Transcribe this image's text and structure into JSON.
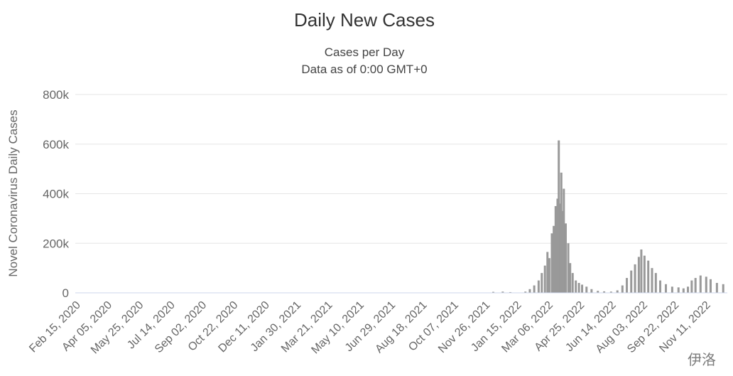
{
  "chart_data": {
    "type": "bar",
    "title": "Daily New Cases",
    "subtitle": [
      "Cases per Day",
      "Data as of 0:00 GMT+0"
    ],
    "xlabel": "",
    "ylabel": "Novel Coronavirus Daily Cases",
    "ylim": [
      0,
      800000
    ],
    "y_ticks": [
      0,
      200000,
      400000,
      600000,
      800000
    ],
    "y_tick_labels": [
      "0",
      "200k",
      "400k",
      "600k",
      "800k"
    ],
    "x_tick_labels": [
      "Feb 15, 2020",
      "Apr 05, 2020",
      "May 25, 2020",
      "Jul 14, 2020",
      "Sep 02, 2020",
      "Oct 22, 2020",
      "Dec 11, 2020",
      "Jan 30, 2021",
      "Mar 21, 2021",
      "May 10, 2021",
      "Jun 29, 2021",
      "Aug 18, 2021",
      "Oct 07, 2021",
      "Nov 26, 2021",
      "Jan 15, 2022",
      "Mar 06, 2022",
      "Apr 25, 2022",
      "Jun 14, 2022",
      "Aug 03, 2022",
      "Sep 22, 2022",
      "Nov 11, 2022"
    ],
    "x_start": "Feb 15, 2020",
    "x_end": "Dec 07, 2022",
    "grid": true,
    "series": [
      {
        "color": "#999999",
        "points": [
          [
            "2021-12-05",
            4000
          ],
          [
            "2021-12-20",
            5000
          ],
          [
            "2022-01-01",
            3000
          ],
          [
            "2022-01-25",
            5000
          ],
          [
            "2022-02-01",
            15000
          ],
          [
            "2022-02-08",
            30000
          ],
          [
            "2022-02-15",
            50000
          ],
          [
            "2022-02-20",
            80000
          ],
          [
            "2022-02-25",
            110000
          ],
          [
            "2022-03-01",
            165000
          ],
          [
            "2022-03-04",
            140000
          ],
          [
            "2022-03-08",
            240000
          ],
          [
            "2022-03-11",
            270000
          ],
          [
            "2022-03-14",
            350000
          ],
          [
            "2022-03-17",
            380000
          ],
          [
            "2022-03-19",
            615000
          ],
          [
            "2022-03-21",
            360000
          ],
          [
            "2022-03-23",
            485000
          ],
          [
            "2022-03-25",
            330000
          ],
          [
            "2022-03-27",
            420000
          ],
          [
            "2022-03-30",
            280000
          ],
          [
            "2022-04-03",
            200000
          ],
          [
            "2022-04-06",
            120000
          ],
          [
            "2022-04-10",
            80000
          ],
          [
            "2022-04-15",
            50000
          ],
          [
            "2022-04-20",
            40000
          ],
          [
            "2022-04-25",
            33000
          ],
          [
            "2022-05-02",
            25000
          ],
          [
            "2022-05-10",
            15000
          ],
          [
            "2022-05-20",
            8000
          ],
          [
            "2022-05-30",
            6000
          ],
          [
            "2022-06-10",
            5000
          ],
          [
            "2022-06-20",
            10000
          ],
          [
            "2022-06-28",
            30000
          ],
          [
            "2022-07-05",
            60000
          ],
          [
            "2022-07-12",
            90000
          ],
          [
            "2022-07-18",
            115000
          ],
          [
            "2022-07-24",
            145000
          ],
          [
            "2022-07-28",
            175000
          ],
          [
            "2022-08-02",
            150000
          ],
          [
            "2022-08-08",
            130000
          ],
          [
            "2022-08-14",
            100000
          ],
          [
            "2022-08-20",
            80000
          ],
          [
            "2022-08-27",
            50000
          ],
          [
            "2022-09-05",
            35000
          ],
          [
            "2022-09-15",
            25000
          ],
          [
            "2022-09-25",
            22000
          ],
          [
            "2022-10-03",
            18000
          ],
          [
            "2022-10-10",
            25000
          ],
          [
            "2022-10-16",
            50000
          ],
          [
            "2022-10-22",
            60000
          ],
          [
            "2022-10-30",
            70000
          ],
          [
            "2022-11-08",
            65000
          ],
          [
            "2022-11-15",
            55000
          ],
          [
            "2022-11-25",
            40000
          ],
          [
            "2022-12-05",
            35000
          ]
        ]
      }
    ]
  },
  "watermark": "伊洛"
}
